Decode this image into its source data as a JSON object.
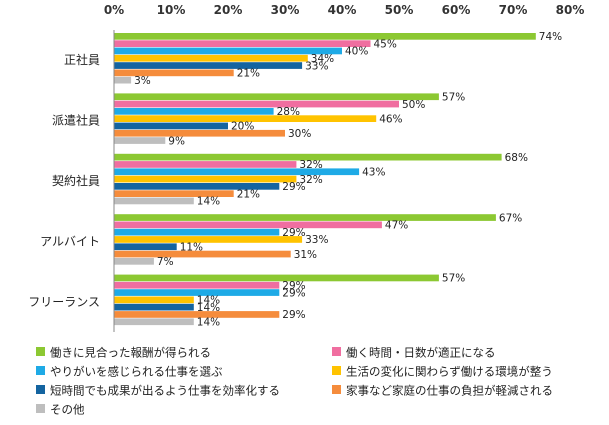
{
  "chart_data": {
    "type": "bar",
    "orientation": "horizontal",
    "categories": [
      "正社員",
      "派遣社員",
      "契約社員",
      "アルバイト",
      "フリーランス"
    ],
    "xlim": [
      0,
      80
    ],
    "xticks": [
      "0%",
      "10%",
      "20%",
      "30%",
      "40%",
      "50%",
      "60%",
      "70%",
      "80%"
    ],
    "value_suffix": "%",
    "grid": false,
    "legend_position": "bottom",
    "series": [
      {
        "name": "働きに見合った報酬が得られる",
        "color": "#8cc832",
        "values": [
          74,
          57,
          68,
          67,
          57
        ]
      },
      {
        "name": "働く時間・日数が適正になる",
        "color": "#f06ea0",
        "values": [
          45,
          50,
          32,
          47,
          29
        ]
      },
      {
        "name": "やりがいを感じられる仕事を選ぶ",
        "color": "#1eaae6",
        "values": [
          40,
          28,
          43,
          29,
          29
        ]
      },
      {
        "name": "生活の変化に関わらず働ける環境が整う",
        "color": "#ffc300",
        "values": [
          34,
          46,
          32,
          33,
          14
        ]
      },
      {
        "name": "短時間でも成果が出るよう仕事を効率化する",
        "color": "#1464a0",
        "values": [
          33,
          20,
          29,
          11,
          14
        ]
      },
      {
        "name": "家事など家庭の仕事の負担が軽減される",
        "color": "#f58c3c",
        "values": [
          21,
          30,
          21,
          31,
          29
        ]
      },
      {
        "name": "その他",
        "color": "#bebebe",
        "values": [
          3,
          9,
          14,
          7,
          14
        ]
      }
    ]
  }
}
